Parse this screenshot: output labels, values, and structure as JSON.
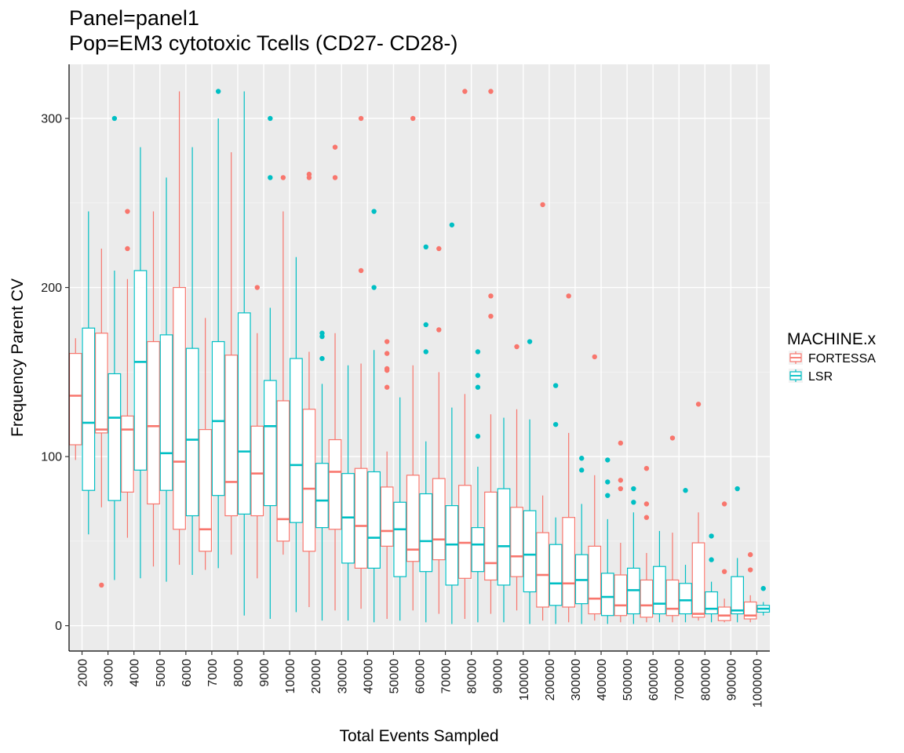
{
  "chart_data": {
    "type": "boxplot",
    "title_line1": "Panel=panel1",
    "title_line2": "Pop=EM3 cytotoxic Tcells (CD27-  CD28-)",
    "xlabel": "Total Events Sampled",
    "ylabel": "Frequency Parent CV",
    "ylim": [
      -15,
      332
    ],
    "yticks": [
      0,
      100,
      200,
      300
    ],
    "grid": true,
    "legend": {
      "title": "MACHINE.x",
      "position": "right"
    },
    "categories": [
      "2000",
      "3000",
      "4000",
      "5000",
      "6000",
      "7000",
      "8000",
      "9000",
      "10000",
      "20000",
      "30000",
      "40000",
      "50000",
      "60000",
      "70000",
      "80000",
      "90000",
      "100000",
      "200000",
      "300000",
      "400000",
      "500000",
      "600000",
      "700000",
      "800000",
      "900000",
      "1000000"
    ],
    "series": [
      {
        "name": "FORTESSA",
        "color": "#F8766D",
        "boxes": [
          {
            "min": 98,
            "q1": 107,
            "median": 136,
            "q3": 161,
            "max": 170,
            "outliers": []
          },
          {
            "min": 70,
            "q1": 114,
            "median": 116,
            "q3": 173,
            "max": 223,
            "outliers": [
              24
            ]
          },
          {
            "min": 52,
            "q1": 79,
            "median": 116,
            "q3": 124,
            "max": 205,
            "outliers": [
              223,
              245
            ]
          },
          {
            "min": 35,
            "q1": 72,
            "median": 118,
            "q3": 168,
            "max": 245,
            "outliers": []
          },
          {
            "min": 36,
            "q1": 57,
            "median": 97,
            "q3": 200,
            "max": 316,
            "outliers": []
          },
          {
            "min": 33,
            "q1": 44,
            "median": 57,
            "q3": 116,
            "max": 182,
            "outliers": []
          },
          {
            "min": 42,
            "q1": 65,
            "median": 85,
            "q3": 160,
            "max": 280,
            "outliers": []
          },
          {
            "min": 28,
            "q1": 65,
            "median": 90,
            "q3": 118,
            "max": 173,
            "outliers": [
              200
            ]
          },
          {
            "min": 42,
            "q1": 50,
            "median": 63,
            "q3": 133,
            "max": 245,
            "outliers": [
              265
            ]
          },
          {
            "min": 11,
            "q1": 44,
            "median": 81,
            "q3": 128,
            "max": 162,
            "outliers": [
              265,
              267
            ]
          },
          {
            "min": 9,
            "q1": 57,
            "median": 91,
            "q3": 110,
            "max": 173,
            "outliers": [
              265,
              283
            ]
          },
          {
            "min": 10,
            "q1": 34,
            "median": 59,
            "q3": 93,
            "max": 155,
            "outliers": [
              210,
              300
            ]
          },
          {
            "min": 4,
            "q1": 47,
            "median": 56,
            "q3": 82,
            "max": 103,
            "outliers": [
              141,
              151,
              152,
              161,
              168
            ]
          },
          {
            "min": 9,
            "q1": 38,
            "median": 45,
            "q3": 89,
            "max": 154,
            "outliers": [
              300
            ]
          },
          {
            "min": 7,
            "q1": 39,
            "median": 51,
            "q3": 87,
            "max": 150,
            "outliers": [
              175,
              223
            ]
          },
          {
            "min": 4,
            "q1": 28,
            "median": 49,
            "q3": 83,
            "max": 137,
            "outliers": [
              316
            ]
          },
          {
            "min": 7,
            "q1": 27,
            "median": 37,
            "q3": 79,
            "max": 125,
            "outliers": [
              183,
              195,
              316
            ]
          },
          {
            "min": 9,
            "q1": 29,
            "median": 41,
            "q3": 70,
            "max": 128,
            "outliers": [
              165
            ]
          },
          {
            "min": 3,
            "q1": 11,
            "median": 30,
            "q3": 55,
            "max": 77,
            "outliers": [
              249
            ]
          },
          {
            "min": 2,
            "q1": 11,
            "median": 25,
            "q3": 64,
            "max": 114,
            "outliers": [
              195
            ]
          },
          {
            "min": 3,
            "q1": 7,
            "median": 16,
            "q3": 47,
            "max": 89,
            "outliers": [
              159
            ]
          },
          {
            "min": 2,
            "q1": 6,
            "median": 12,
            "q3": 30,
            "max": 49,
            "outliers": [
              81,
              86,
              108
            ]
          },
          {
            "min": 2,
            "q1": 5,
            "median": 12,
            "q3": 27,
            "max": 43,
            "outliers": [
              64,
              72,
              93
            ]
          },
          {
            "min": 2,
            "q1": 6,
            "median": 10,
            "q3": 27,
            "max": 55,
            "outliers": [
              111
            ]
          },
          {
            "min": 3,
            "q1": 5,
            "median": 7,
            "q3": 49,
            "max": 67,
            "outliers": [
              131
            ]
          },
          {
            "min": 2,
            "q1": 3,
            "median": 6,
            "q3": 11,
            "max": 16,
            "outliers": [
              32,
              72
            ]
          },
          {
            "min": 2,
            "q1": 4,
            "median": 6,
            "q3": 14,
            "max": 18,
            "outliers": [
              33,
              42
            ]
          }
        ]
      },
      {
        "name": "LSR",
        "color": "#00BFC4",
        "boxes": [
          {
            "min": 54,
            "q1": 80,
            "median": 120,
            "q3": 176,
            "max": 245,
            "outliers": []
          },
          {
            "min": 27,
            "q1": 74,
            "median": 123,
            "q3": 149,
            "max": 210,
            "outliers": [
              300
            ]
          },
          {
            "min": 28,
            "q1": 92,
            "median": 156,
            "q3": 210,
            "max": 283,
            "outliers": []
          },
          {
            "min": 26,
            "q1": 80,
            "median": 102,
            "q3": 172,
            "max": 265,
            "outliers": []
          },
          {
            "min": 30,
            "q1": 65,
            "median": 110,
            "q3": 164,
            "max": 283,
            "outliers": []
          },
          {
            "min": 34,
            "q1": 77,
            "median": 121,
            "q3": 168,
            "max": 300,
            "outliers": [
              316
            ]
          },
          {
            "min": 6,
            "q1": 66,
            "median": 103,
            "q3": 185,
            "max": 316,
            "outliers": []
          },
          {
            "min": 4,
            "q1": 71,
            "median": 118,
            "q3": 145,
            "max": 188,
            "outliers": [
              265,
              300
            ]
          },
          {
            "min": 8,
            "q1": 61,
            "median": 95,
            "q3": 158,
            "max": 218,
            "outliers": []
          },
          {
            "min": 3,
            "q1": 58,
            "median": 74,
            "q3": 96,
            "max": 143,
            "outliers": [
              158,
              171,
              173
            ]
          },
          {
            "min": 3,
            "q1": 37,
            "median": 64,
            "q3": 90,
            "max": 154,
            "outliers": []
          },
          {
            "min": 2,
            "q1": 34,
            "median": 52,
            "q3": 91,
            "max": 163,
            "outliers": [
              200,
              245
            ]
          },
          {
            "min": 3,
            "q1": 29,
            "median": 57,
            "q3": 73,
            "max": 135,
            "outliers": []
          },
          {
            "min": 2,
            "q1": 32,
            "median": 50,
            "q3": 78,
            "max": 109,
            "outliers": [
              162,
              178,
              224
            ]
          },
          {
            "min": 1,
            "q1": 24,
            "median": 48,
            "q3": 71,
            "max": 129,
            "outliers": [
              237
            ]
          },
          {
            "min": 2,
            "q1": 32,
            "median": 48,
            "q3": 58,
            "max": 94,
            "outliers": [
              112,
              141,
              148,
              162
            ]
          },
          {
            "min": 2,
            "q1": 24,
            "median": 47,
            "q3": 81,
            "max": 123,
            "outliers": []
          },
          {
            "min": 1,
            "q1": 20,
            "median": 42,
            "q3": 68,
            "max": 122,
            "outliers": [
              168
            ]
          },
          {
            "min": 1,
            "q1": 12,
            "median": 25,
            "q3": 48,
            "max": 64,
            "outliers": [
              119,
              142
            ]
          },
          {
            "min": 1,
            "q1": 13,
            "median": 27,
            "q3": 42,
            "max": 72,
            "outliers": [
              92,
              99
            ]
          },
          {
            "min": 1,
            "q1": 6,
            "median": 17,
            "q3": 31,
            "max": 63,
            "outliers": [
              77,
              85,
              98
            ]
          },
          {
            "min": 1,
            "q1": 7,
            "median": 21,
            "q3": 34,
            "max": 67,
            "outliers": [
              73,
              81
            ]
          },
          {
            "min": 2,
            "q1": 7,
            "median": 13,
            "q3": 35,
            "max": 56,
            "outliers": []
          },
          {
            "min": 2,
            "q1": 7,
            "median": 15,
            "q3": 25,
            "max": 36,
            "outliers": [
              80
            ]
          },
          {
            "min": 2,
            "q1": 7,
            "median": 10,
            "q3": 20,
            "max": 26,
            "outliers": [
              39,
              53
            ]
          },
          {
            "min": 2,
            "q1": 7,
            "median": 9,
            "q3": 29,
            "max": 40,
            "outliers": [
              81
            ]
          },
          {
            "min": 6,
            "q1": 8,
            "median": 10,
            "q3": 12,
            "max": 14,
            "outliers": [
              22
            ]
          }
        ]
      }
    ]
  }
}
